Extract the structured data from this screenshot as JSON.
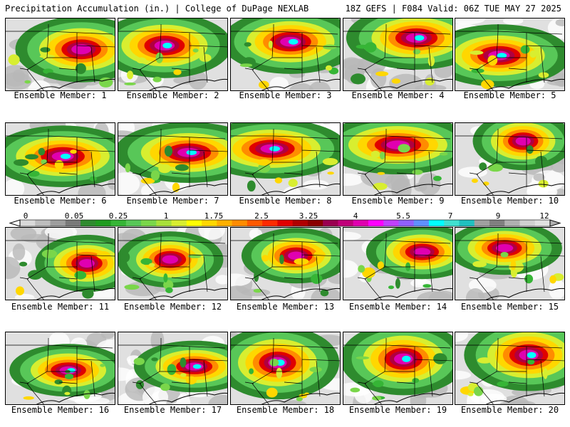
{
  "header": {
    "left": "Precipitation Accumulation (in.) | College of DuPage NEXLAB",
    "right": "18Z GEFS | F084 Valid: 06Z TUE MAY 27 2025"
  },
  "members": [
    {
      "label": "Ensemble Member: 1"
    },
    {
      "label": "Ensemble Member: 2"
    },
    {
      "label": "Ensemble Member: 3"
    },
    {
      "label": "Ensemble Member: 4"
    },
    {
      "label": "Ensemble Member: 5"
    },
    {
      "label": "Ensemble Member: 6"
    },
    {
      "label": "Ensemble Member: 7"
    },
    {
      "label": "Ensemble Member: 8"
    },
    {
      "label": "Ensemble Member: 9"
    },
    {
      "label": "Ensemble Member: 10"
    },
    {
      "label": "Ensemble Member: 11"
    },
    {
      "label": "Ensemble Member: 12"
    },
    {
      "label": "Ensemble Member: 13"
    },
    {
      "label": "Ensemble Member: 14"
    },
    {
      "label": "Ensemble Member: 15"
    },
    {
      "label": "Ensemble Member: 16"
    },
    {
      "label": "Ensemble Member: 17"
    },
    {
      "label": "Ensemble Member: 18"
    },
    {
      "label": "Ensemble Member: 19"
    },
    {
      "label": "Ensemble Member: 20"
    }
  ],
  "colorbar": {
    "tick_labels": [
      "0",
      "0.05",
      "0.25",
      "1",
      "1.75",
      "2.5",
      "3.25",
      "4",
      "5.5",
      "7",
      "9",
      "12"
    ],
    "colors": [
      "#d9d9d9",
      "#bdbdbd",
      "#9e9e9e",
      "#7a7a7a",
      "#2e8b2e",
      "#1f9c1f",
      "#36b536",
      "#58c758",
      "#7ad64a",
      "#a8e03a",
      "#d8ee30",
      "#ffff00",
      "#ffd700",
      "#ffb000",
      "#ff8c00",
      "#ff5a00",
      "#ff2a00",
      "#e00000",
      "#b00000",
      "#8b0000",
      "#9a0050",
      "#c0007a",
      "#e000b0",
      "#ff00ff",
      "#c040ff",
      "#9060ff",
      "#6090ff",
      "#00ffff",
      "#40e0d0",
      "#20c0c0",
      "#a0a0a0",
      "#808080",
      "#b0b0b0",
      "#d0d0d0",
      "#e0e0e0"
    ]
  }
}
